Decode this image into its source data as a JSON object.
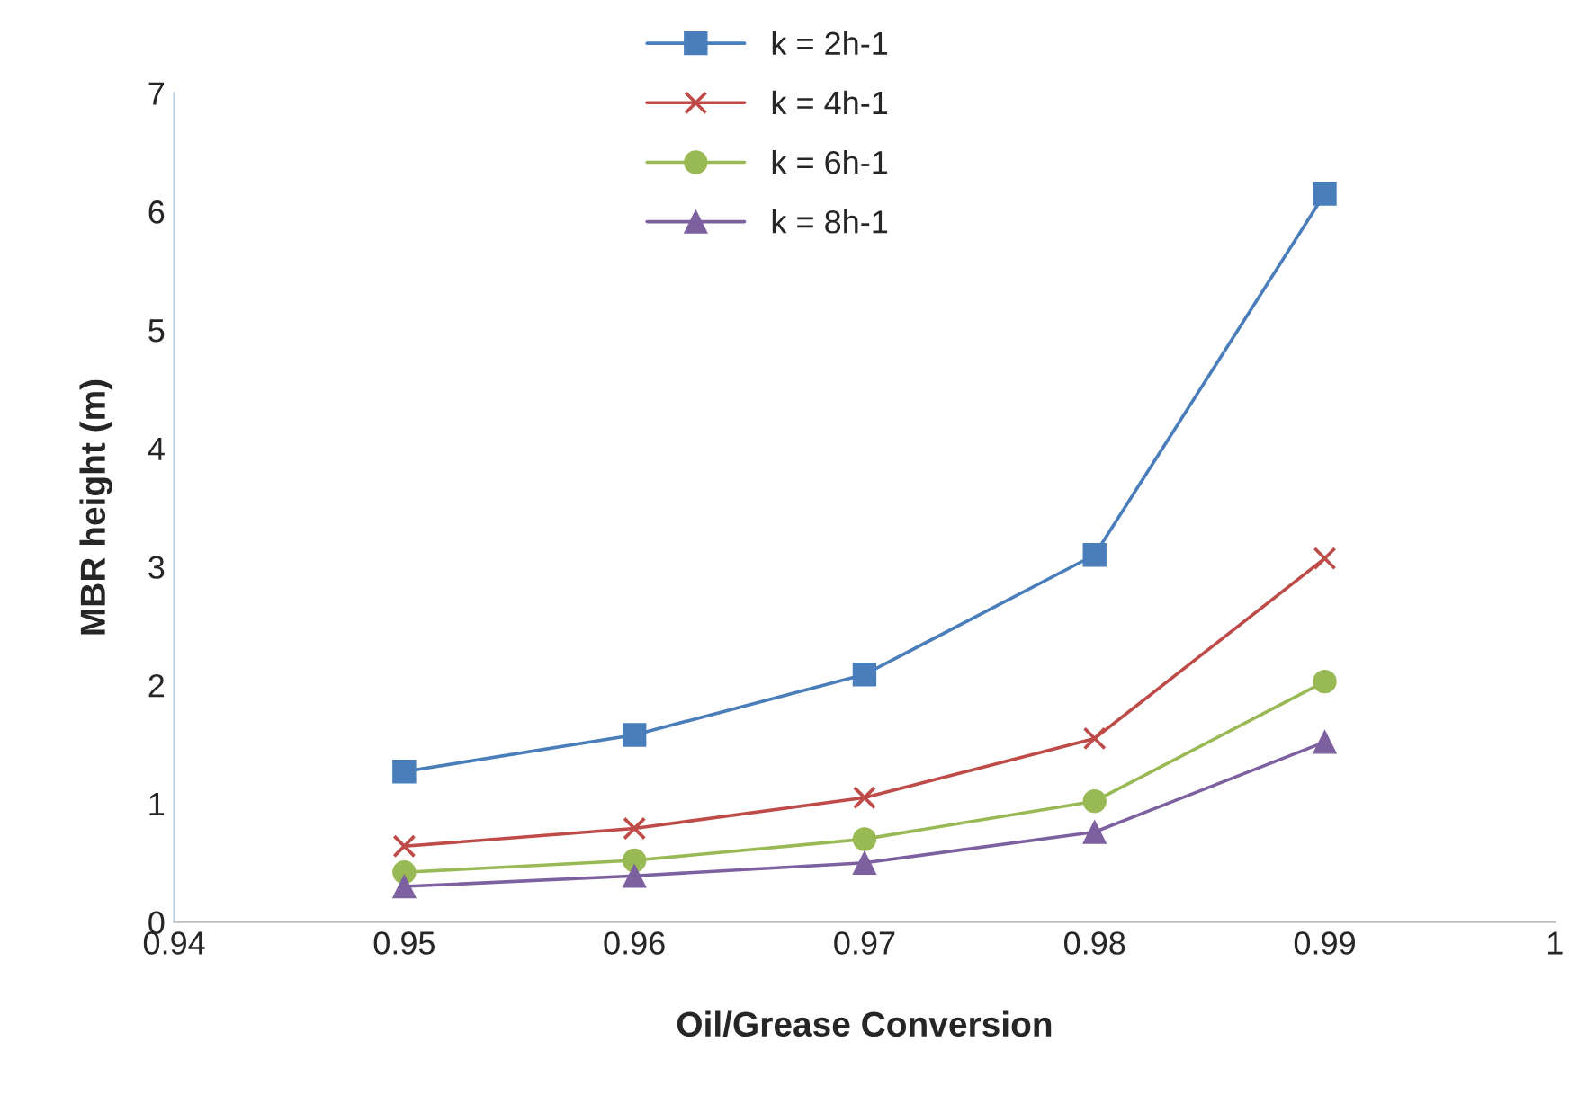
{
  "chart_data": {
    "type": "line",
    "xlabel": "Oil/Grease Conversion",
    "ylabel": "MBR height (m)",
    "x": [
      0.95,
      0.96,
      0.97,
      0.98,
      0.99
    ],
    "series": [
      {
        "name": "k = 2h-1",
        "color": "#4a7ebb",
        "marker": "square",
        "values": [
          1.27,
          1.58,
          2.09,
          3.1,
          6.15
        ]
      },
      {
        "name": "k = 4h-1",
        "color": "#be4b48",
        "marker": "cross",
        "values": [
          0.64,
          0.79,
          1.05,
          1.55,
          3.07
        ]
      },
      {
        "name": "k = 6h-1",
        "color": "#98b954",
        "marker": "circle",
        "values": [
          0.42,
          0.52,
          0.7,
          1.02,
          2.03
        ]
      },
      {
        "name": "k = 8h-1",
        "color": "#7d60a0",
        "marker": "triangle",
        "values": [
          0.3,
          0.39,
          0.5,
          0.76,
          1.52
        ]
      }
    ],
    "xlim": [
      0.94,
      1
    ],
    "xticks": [
      0.94,
      0.95,
      0.96,
      0.97,
      0.98,
      0.99,
      1
    ],
    "ylim": [
      0,
      7
    ],
    "yticks": [
      0,
      1,
      2,
      3,
      4,
      5,
      6,
      7
    ],
    "grid": false,
    "legend": "top",
    "line_style": "solid"
  }
}
